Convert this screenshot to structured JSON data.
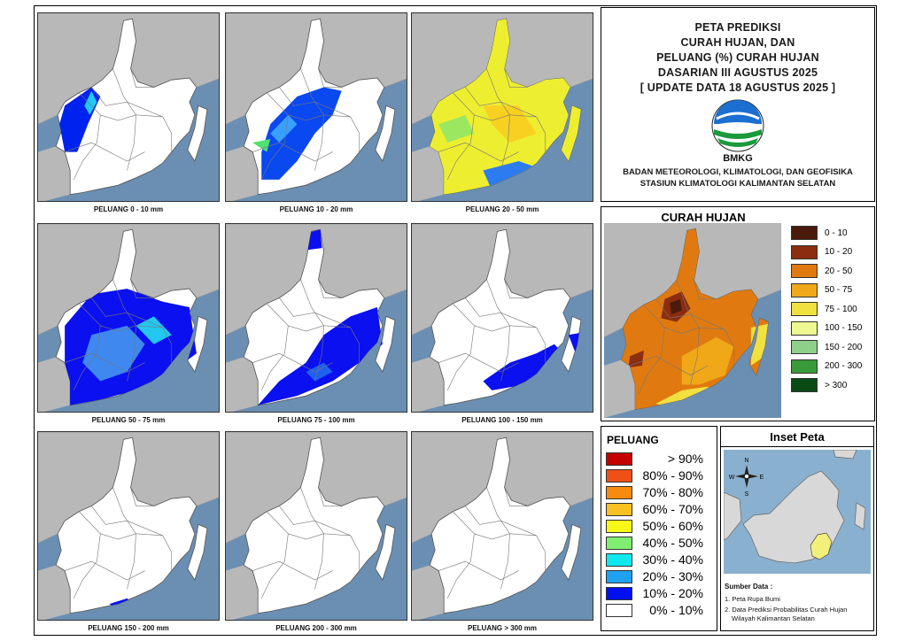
{
  "title": {
    "lines": [
      "PETA PREDIKSI",
      "CURAH HUJAN, DAN",
      "PELUANG (%) CURAH HUJAN",
      "DASARIAN III AGUSTUS 2025",
      "[ UPDATE DATA 18 AGUSTUS 2025 ]"
    ],
    "logo_text": "BMKG",
    "org_lines": [
      "BADAN METEOROLOGI, KLIMATOLOGI, DAN GEOFISIKA",
      "STASIUN KLIMATOLOGI KALIMANTAN SELATAN"
    ]
  },
  "panels": [
    {
      "caption": "PELUANG 0 - 10 mm",
      "color_scheme": [
        "#0022ee",
        "#22c8f0",
        "#ffffff"
      ]
    },
    {
      "caption": "PELUANG 10 - 20 mm",
      "color_scheme": [
        "#0a48f0",
        "#3aa0ff",
        "#50e070"
      ]
    },
    {
      "caption": "PELUANG 20 - 50 mm",
      "color_scheme": [
        "#eeee30",
        "#f8d020",
        "#9be860",
        "#2c7cf0"
      ]
    },
    {
      "caption": "PELUANG 50 - 75 mm",
      "color_scheme": [
        "#0a10f0",
        "#3e88f0",
        "#22c8f0"
      ]
    },
    {
      "caption": "PELUANG 75 - 100 mm",
      "color_scheme": [
        "#0a10f0",
        "#1e60f0"
      ]
    },
    {
      "caption": "PELUANG 100 - 150 mm",
      "color_scheme": [
        "#0a10f0"
      ]
    },
    {
      "caption": "PELUANG 150 - 200 mm",
      "color_scheme": [
        "#0a10f0"
      ]
    },
    {
      "caption": "PELUANG 200 - 300 mm",
      "color_scheme": []
    },
    {
      "caption": "PELUANG > 300 mm",
      "color_scheme": []
    }
  ],
  "curah_hujan": {
    "title": "CURAH HUJAN",
    "legend": [
      {
        "label": "0 - 10",
        "color": "#4a1b0a"
      },
      {
        "label": "10 - 20",
        "color": "#8b2d0e"
      },
      {
        "label": "20 - 50",
        "color": "#e07a10"
      },
      {
        "label": "50 - 75",
        "color": "#f0a818"
      },
      {
        "label": "75 - 100",
        "color": "#f0e040"
      },
      {
        "label": "100 - 150",
        "color": "#eef890"
      },
      {
        "label": "150 - 200",
        "color": "#8ed08a"
      },
      {
        "label": "200 - 300",
        "color": "#3a9a3a"
      },
      {
        "label": "> 300",
        "color": "#0a4a14"
      }
    ]
  },
  "peluang": {
    "title": "PELUANG",
    "legend": [
      {
        "label": "> 90%",
        "color": "#c40000"
      },
      {
        "label": "80% - 90%",
        "color": "#f05018"
      },
      {
        "label": "70% - 80%",
        "color": "#f88a10"
      },
      {
        "label": "60% - 70%",
        "color": "#f8c020"
      },
      {
        "label": "50% - 60%",
        "color": "#f8f818"
      },
      {
        "label": "40% - 50%",
        "color": "#80ee70"
      },
      {
        "label": "30% - 40%",
        "color": "#10e8f0"
      },
      {
        "label": "20% - 30%",
        "color": "#20a0f0"
      },
      {
        "label": "10% - 20%",
        "color": "#0010f0"
      },
      {
        "label": "0% - 10%",
        "color": "#ffffff"
      }
    ]
  },
  "inset": {
    "title": "Inset Peta",
    "compass": {
      "n": "N",
      "s": "S",
      "e": "E",
      "w": "W"
    },
    "source_title": "Sumber Data :",
    "source_lines": [
      "1. Peta Rupa Bumi",
      "2. Data Prediksi Probabilitas Curah Hujan",
      "Wilayah Kalimantan Selatan"
    ]
  },
  "colors": {
    "sea": "#6b8fb3",
    "land_outside": "#b8b8b8",
    "province_base": "#ffffff"
  }
}
